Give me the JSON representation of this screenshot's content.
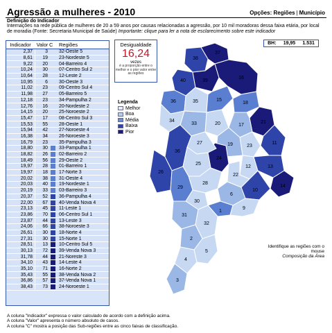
{
  "header": {
    "title": "Agressão a mulheres - 2010",
    "options_label": "Opções:",
    "option_regioes": "Regiões",
    "option_municipio": "Município"
  },
  "definition": {
    "heading": "Definição do Indicador",
    "text": "Internações na rede pública de mulheres de 20 a 59 anos por causas relacionadas a agressão, por 10 mil moradoras dessa faixa etária, por local de moradia (Fonte: Secretaria Municipal de Saúde)",
    "note": "Importante: clique para ler a nota de esclarecimento sobre este indicador"
  },
  "table": {
    "headers": {
      "indicador": "Indicador",
      "valor": "Valor",
      "c": "C",
      "regioes": "Regiões"
    },
    "rows": [
      {
        "ind": "2,37",
        "val": "3",
        "c": 1,
        "reg": "32-Oeste 5"
      },
      {
        "ind": "8,61",
        "val": "19",
        "c": 1,
        "reg": "23-Nordeste 5"
      },
      {
        "ind": "9,22",
        "val": "20",
        "c": 1,
        "reg": "04-Barreiro 4"
      },
      {
        "ind": "10,24",
        "val": "30",
        "c": 1,
        "reg": "07-Centro Sul 2"
      },
      {
        "ind": "10,64",
        "val": "28",
        "c": 1,
        "reg": "12-Leste 2"
      },
      {
        "ind": "10,95",
        "val": "6",
        "c": 1,
        "reg": "30-Oeste 3"
      },
      {
        "ind": "11,02",
        "val": "23",
        "c": 1,
        "reg": "09-Centro Sul 4"
      },
      {
        "ind": "11,98",
        "val": "27",
        "c": 1,
        "reg": "05-Barreiro 5"
      },
      {
        "ind": "12,18",
        "val": "23",
        "c": 1,
        "reg": "34-Pampulha 2"
      },
      {
        "ind": "12,76",
        "val": "16",
        "c": 1,
        "reg": "20-Nordeste 2"
      },
      {
        "ind": "14,15",
        "val": "20",
        "c": 1,
        "reg": "25-Noroeste 2"
      },
      {
        "ind": "15,47",
        "val": "17",
        "c": 1,
        "reg": "08-Centro Sul 3"
      },
      {
        "ind": "15,53",
        "val": "55",
        "c": 1,
        "reg": "28-Oeste 1"
      },
      {
        "ind": "15,94",
        "val": "42",
        "c": 1,
        "reg": "27-Noroeste 4"
      },
      {
        "ind": "16,38",
        "val": "34",
        "c": 1,
        "reg": "26-Noroeste 3"
      },
      {
        "ind": "16,79",
        "val": "23",
        "c": 1,
        "reg": "35-Pampulha 3"
      },
      {
        "ind": "18,80",
        "val": "30",
        "c": 2,
        "reg": "33-Pampulha 1"
      },
      {
        "ind": "18,82",
        "val": "26",
        "c": 2,
        "reg": "02-Barreiro 2"
      },
      {
        "ind": "18,49",
        "val": "56",
        "c": 2,
        "reg": "29-Oeste 2"
      },
      {
        "ind": "19,97",
        "val": "28",
        "c": 2,
        "reg": "01-Barreiro 1"
      },
      {
        "ind": "19,97",
        "val": "18",
        "c": 2,
        "reg": "17-Norte 3"
      },
      {
        "ind": "20,02",
        "val": "38",
        "c": 2,
        "reg": "31-Oeste 4"
      },
      {
        "ind": "20,03",
        "val": "40",
        "c": 2,
        "reg": "19-Nordeste 1"
      },
      {
        "ind": "20,19",
        "val": "33",
        "c": 2,
        "reg": "03-Barreiro 3"
      },
      {
        "ind": "20,37",
        "val": "52",
        "c": 3,
        "reg": "36-Pampulha 4"
      },
      {
        "ind": "22,00",
        "val": "67",
        "c": 3,
        "reg": "40-Venda Nova 4"
      },
      {
        "ind": "23,13",
        "val": "45",
        "c": 3,
        "reg": "11-Leste 1"
      },
      {
        "ind": "23,86",
        "val": "70",
        "c": 3,
        "reg": "06-Centro Sul 1"
      },
      {
        "ind": "23,87",
        "val": "44",
        "c": 3,
        "reg": "13-Leste 3"
      },
      {
        "ind": "24,06",
        "val": "66",
        "c": 3,
        "reg": "38-Noroeste 3"
      },
      {
        "ind": "26,61",
        "val": "30",
        "c": 3,
        "reg": "18-Norte 4"
      },
      {
        "ind": "27,31",
        "val": "30",
        "c": 3,
        "reg": "15-Norte 1"
      },
      {
        "ind": "28,51",
        "val": "13",
        "c": 4,
        "reg": "10-Centro Sul 5"
      },
      {
        "ind": "30,13",
        "val": "72",
        "c": 4,
        "reg": "39-Venda Nova 3"
      },
      {
        "ind": "31,78",
        "val": "44",
        "c": 4,
        "reg": "21-Noreste 3"
      },
      {
        "ind": "34,10",
        "val": "43",
        "c": 4,
        "reg": "14-Leste 4"
      },
      {
        "ind": "35,10",
        "val": "71",
        "c": 4,
        "reg": "16-Norte 2"
      },
      {
        "ind": "35,43",
        "val": "55",
        "c": 4,
        "reg": "38-Venda Nova 2"
      },
      {
        "ind": "36,86",
        "val": "57",
        "c": 4,
        "reg": "37-Venda Nova 1"
      },
      {
        "ind": "38,43",
        "val": "73",
        "c": 4,
        "reg": "24-Noroeste 1"
      }
    ]
  },
  "class_colors": [
    "#c6d8f2",
    "#9ab7e6",
    "#5a7ed0",
    "#2f44a8",
    "#1a1a78"
  ],
  "desigualdade": {
    "label": "Desigualdade",
    "value": "16,24",
    "unit": "vezes",
    "explanation": "é a proporção entre o melhor e o pior valor entre as regiões"
  },
  "bh": {
    "label": "BH:",
    "value": "19,95",
    "count": "1.531"
  },
  "legend": {
    "title": "Legenda",
    "items": [
      {
        "label": "Melhor",
        "color": "#e8eef8"
      },
      {
        "label": "Boa",
        "color": "#b7cfee"
      },
      {
        "label": "Média",
        "color": "#6b8fd6"
      },
      {
        "label": "Baixa",
        "color": "#2f44a8"
      },
      {
        "label": "Pior",
        "color": "#1a1a78"
      }
    ]
  },
  "map": {
    "hint": "Identifique as regiões com o mouse",
    "source": "Composição da Área",
    "region_numbers": [
      "38",
      "37",
      "40",
      "39",
      "16",
      "36",
      "15",
      "35",
      "21",
      "18",
      "20",
      "17",
      "23",
      "27",
      "11",
      "26",
      "24",
      "12",
      "13",
      "22",
      "25",
      "28",
      "14",
      "1",
      "30",
      "10",
      "29",
      "9",
      "32",
      "2",
      "4",
      "3",
      "5"
    ]
  },
  "footnotes": [
    "A coluna \"Indicador\" expressa o valor calculado de acordo com a definição acima.",
    "A coluna \"Valor\" apresenta o número absoluto de casos.",
    "A coluna \"C\" mostra a posição das Sub-regiões entre as cinco faixas de classificação."
  ]
}
